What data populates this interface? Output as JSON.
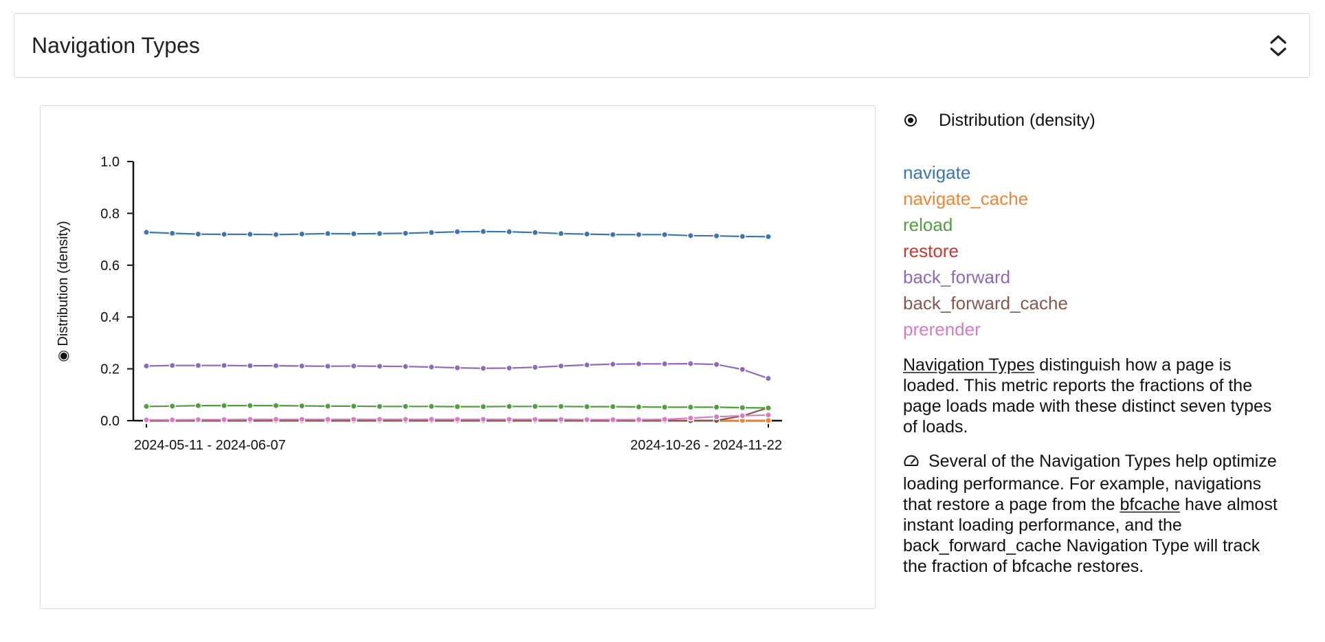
{
  "header": {
    "title": "Navigation Types"
  },
  "metric_selector": {
    "label": "Distribution (density)",
    "selected": true
  },
  "legend": [
    {
      "label": "navigate",
      "color": "#3b75af"
    },
    {
      "label": "navigate_cache",
      "color": "#ef8636"
    },
    {
      "label": "reload",
      "color": "#519e3e"
    },
    {
      "label": "restore",
      "color": "#c53a32"
    },
    {
      "label": "back_forward",
      "color": "#8d69b8"
    },
    {
      "label": "back_forward_cache",
      "color": "#84584e"
    },
    {
      "label": "prerender",
      "color": "#d57dbf"
    }
  ],
  "description": {
    "p1_link": "Navigation Types",
    "p1_rest": " distinguish how a page is loaded. This metric reports the fractions of the page loads made with these distinct seven types of loads.",
    "p2_before": " Several of the Navigation Types help optimize loading performance. For example, navigations that restore a page from the ",
    "p2_link": "bfcache",
    "p2_after": " have almost instant loading performance, and the back_forward_cache Navigation Type will track the fraction of bfcache restores."
  },
  "icons": {
    "header_toggle": "unfold-icon",
    "tip": "speed-gauge-icon",
    "metric_radio": "radio-selected-icon"
  },
  "chart_data": {
    "type": "line",
    "ylabel": "◉ Distribution (density)",
    "xlabel": "",
    "ylim": [
      0,
      1.0
    ],
    "yticks": [
      "0.0",
      "0.2",
      "0.4",
      "0.6",
      "0.8",
      "1.0"
    ],
    "x_tick_labels": [
      "2024-05-11 - 2024-06-07",
      "2024-10-26 - 2024-11-22"
    ],
    "grid": false,
    "legend_placement": "right",
    "series": [
      {
        "name": "navigate",
        "color": "#3b75af",
        "values": [
          0.727,
          0.723,
          0.72,
          0.719,
          0.719,
          0.718,
          0.72,
          0.722,
          0.721,
          0.722,
          0.723,
          0.726,
          0.729,
          0.73,
          0.729,
          0.726,
          0.722,
          0.72,
          0.718,
          0.718,
          0.718,
          0.714,
          0.713,
          0.711,
          0.71
        ]
      },
      {
        "name": "navigate_cache",
        "color": "#ef8636",
        "values": [
          0.001,
          0.001,
          0.001,
          0.001,
          0.001,
          0.001,
          0.001,
          0.001,
          0.001,
          0.001,
          0.001,
          0.001,
          0.001,
          0.001,
          0.001,
          0.001,
          0.001,
          0.001,
          0.001,
          0.001,
          0.001,
          0.001,
          0.001,
          0.001,
          0.001
        ]
      },
      {
        "name": "reload",
        "color": "#519e3e",
        "values": [
          0.055,
          0.056,
          0.058,
          0.058,
          0.058,
          0.058,
          0.057,
          0.056,
          0.056,
          0.055,
          0.055,
          0.055,
          0.054,
          0.054,
          0.055,
          0.055,
          0.055,
          0.054,
          0.054,
          0.053,
          0.052,
          0.052,
          0.052,
          0.05,
          0.049
        ]
      },
      {
        "name": "restore",
        "color": "#c53a32",
        "values": [
          0.0,
          0.0,
          0.0,
          0.0,
          0.0,
          0.0,
          0.0,
          0.0,
          0.0,
          0.0,
          0.0,
          0.0,
          0.0,
          0.0,
          0.0,
          0.0,
          0.0,
          0.0,
          0.0,
          0.0,
          0.0,
          0.0,
          0.0,
          0.0,
          0.0
        ]
      },
      {
        "name": "back_forward",
        "color": "#8d69b8",
        "values": [
          0.211,
          0.213,
          0.213,
          0.213,
          0.212,
          0.212,
          0.211,
          0.21,
          0.211,
          0.21,
          0.209,
          0.207,
          0.204,
          0.202,
          0.203,
          0.206,
          0.211,
          0.215,
          0.218,
          0.219,
          0.219,
          0.22,
          0.217,
          0.198,
          0.163
        ]
      },
      {
        "name": "back_forward_cache",
        "color": "#84584e",
        "values": [
          0.0,
          0.0,
          0.0,
          0.0,
          0.0,
          0.0,
          0.0,
          0.0,
          0.0,
          0.0,
          0.0,
          0.0,
          0.0,
          0.0,
          0.0,
          0.0,
          0.0,
          0.0,
          0.0,
          0.0,
          0.0,
          0.0,
          0.001,
          0.018,
          0.05
        ]
      },
      {
        "name": "prerender",
        "color": "#d57dbf",
        "values": [
          0.003,
          0.003,
          0.004,
          0.004,
          0.005,
          0.005,
          0.005,
          0.005,
          0.005,
          0.005,
          0.005,
          0.005,
          0.005,
          0.005,
          0.005,
          0.005,
          0.005,
          0.004,
          0.004,
          0.004,
          0.005,
          0.01,
          0.015,
          0.019,
          0.022
        ]
      }
    ]
  }
}
